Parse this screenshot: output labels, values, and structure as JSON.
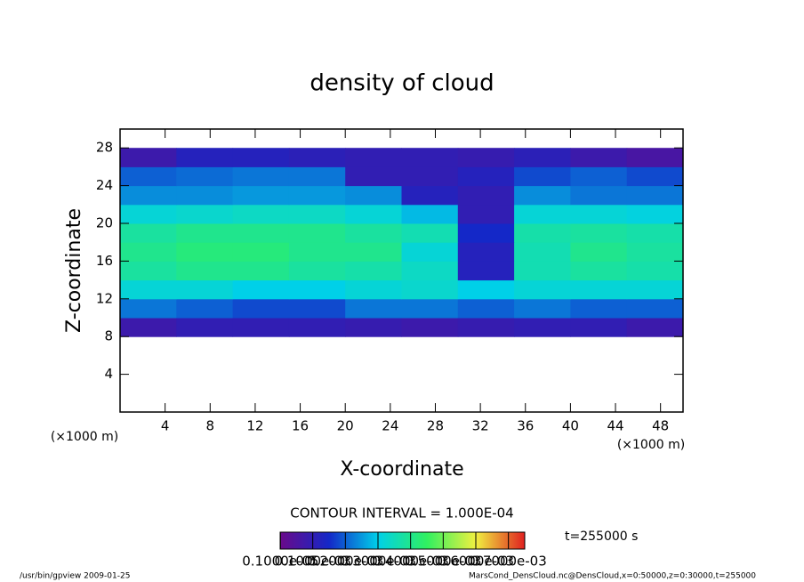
{
  "chart_data": {
    "type": "heatmap",
    "title": "density of cloud",
    "xlabel": "X-coordinate",
    "ylabel": "Z-coordinate",
    "x_unit": "(×1000 m)",
    "y_unit": "(×1000 m)",
    "xlim": [
      0,
      50
    ],
    "ylim": [
      0,
      30
    ],
    "xticks": [
      4,
      8,
      12,
      16,
      20,
      24,
      28,
      32,
      36,
      40,
      44,
      48
    ],
    "yticks": [
      4,
      8,
      12,
      16,
      20,
      24,
      28
    ],
    "x_edges": [
      0,
      5,
      10,
      15,
      20,
      25,
      30,
      35,
      40,
      45,
      50
    ],
    "y_edges": [
      8,
      10,
      12,
      14,
      16,
      18,
      20,
      22,
      24,
      26,
      28
    ],
    "values": [
      [
        8e-05,
        0.0001,
        0.0001,
        0.0001,
        9e-05,
        8e-05,
        9e-05,
        0.0001,
        0.0001,
        8e-05
      ],
      [
        0.00022,
        0.0002,
        0.00018,
        0.00018,
        0.00022,
        0.00022,
        0.0002,
        0.00022,
        0.0002,
        0.0002
      ],
      [
        0.00032,
        0.00032,
        0.0003,
        0.0003,
        0.00032,
        0.00033,
        0.0003,
        0.00032,
        0.00032,
        0.00032
      ],
      [
        0.00038,
        0.0004,
        0.0004,
        0.00038,
        0.00037,
        0.00034,
        0.00012,
        0.00036,
        0.00038,
        0.00037
      ],
      [
        0.0004,
        0.00042,
        0.00042,
        0.0004,
        0.0004,
        0.00032,
        0.00012,
        0.00036,
        0.0004,
        0.00038
      ],
      [
        0.00038,
        0.0004,
        0.0004,
        0.0004,
        0.00038,
        0.00036,
        0.00015,
        0.00037,
        0.00038,
        0.00037
      ],
      [
        0.00032,
        0.00033,
        0.00034,
        0.00034,
        0.00032,
        0.00028,
        0.0001,
        0.00032,
        0.00032,
        0.00031
      ],
      [
        0.00024,
        0.00024,
        0.00025,
        0.00025,
        0.00024,
        0.00012,
        0.0001,
        0.00024,
        0.00022,
        0.00022
      ],
      [
        0.0002,
        0.00021,
        0.00022,
        0.00022,
        0.0001,
        0.0001,
        0.00012,
        0.00018,
        0.0002,
        0.00018
      ],
      [
        8e-05,
        0.00012,
        0.00012,
        0.00011,
        0.0001,
        0.0001,
        9e-05,
        0.00011,
        8e-05,
        6e-05
      ]
    ],
    "colormap": [
      "#6a0a8a",
      "#1428c8",
      "#00d0e8",
      "#30f060",
      "#f0f040",
      "#e02020"
    ],
    "clim": [
      0,
      0.00075
    ],
    "colorbar_ticks": [
      {
        "value": 1e-06,
        "label": "0.1000e-05"
      },
      {
        "value": 0.0001,
        "label": "0.1000e-03"
      },
      {
        "value": 0.0002,
        "label": "0.2000e-03"
      },
      {
        "value": 0.0003,
        "label": "0.3000e-03"
      },
      {
        "value": 0.0004,
        "label": "0.4000e-03"
      },
      {
        "value": 0.0005,
        "label": "0.5000e-03"
      },
      {
        "value": 0.0006,
        "label": "0.6000e-03"
      },
      {
        "value": 0.0007,
        "label": "0.7000e-03"
      }
    ],
    "contour_note": "CONTOUR INTERVAL = 1.000E-04",
    "time_label": "t=255000 s",
    "footer_left": "/usr/bin/gpview  2009-01-25",
    "footer_right": "MarsCond_DensCloud.nc@DensCloud,x=0:50000,z=0:30000,t=255000"
  }
}
